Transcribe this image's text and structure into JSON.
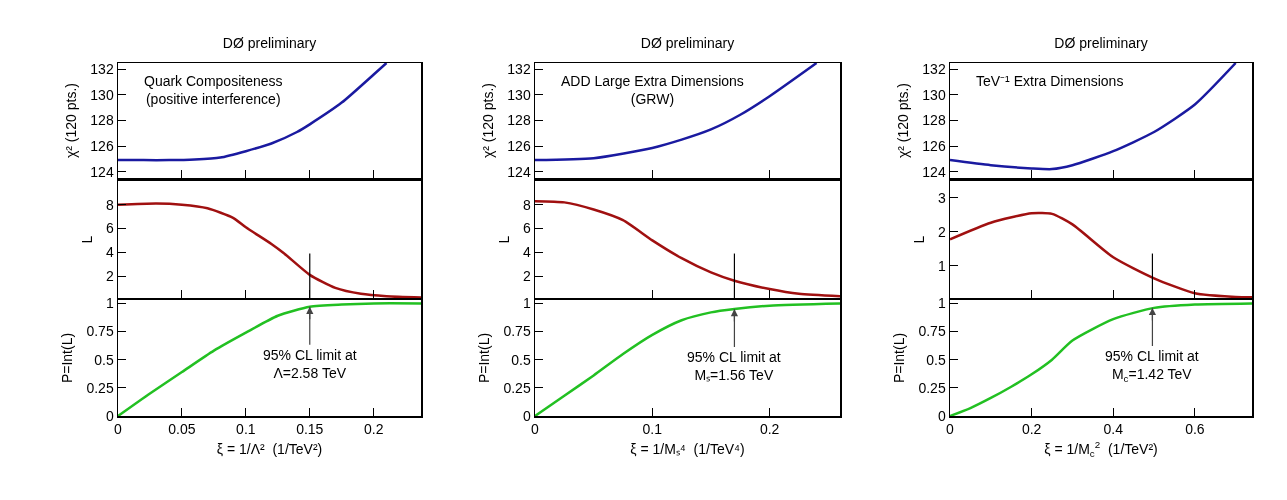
{
  "chart_data": [
    {
      "type": "line",
      "title": "DØ preliminary",
      "ylabel": "χ² (120 pts.)",
      "annotations": [
        "Quark Compositeness\n(positive interference)"
      ],
      "color": "#1a1aa0",
      "x": [
        0,
        0.02,
        0.04,
        0.06,
        0.08,
        0.1,
        0.12,
        0.14,
        0.15,
        0.175,
        0.2,
        0.21
      ],
      "values": [
        124.9,
        124.9,
        124.9,
        124.95,
        125.1,
        125.6,
        126.2,
        127.1,
        127.7,
        129.4,
        131.6,
        132.5
      ],
      "xlim": [
        0,
        0.237
      ],
      "xticks": [
        0,
        0.05,
        0.1,
        0.15,
        0.2
      ],
      "ylim": [
        123.5,
        132.5
      ],
      "yticks": [
        124,
        126,
        128,
        130,
        132
      ],
      "tick_labels": "y"
    },
    {
      "type": "line",
      "title": "DØ preliminary",
      "ylabel": "χ² (120 pts.)",
      "annotations": [
        "ADD Large Extra Dimensions\n(GRW)"
      ],
      "color": "#1a1aa0",
      "x": [
        0,
        0.05,
        0.1,
        0.125,
        0.15,
        0.175,
        0.2,
        0.24
      ],
      "values": [
        124.9,
        125.05,
        125.85,
        126.5,
        127.3,
        128.45,
        129.9,
        132.5
      ],
      "xlim": [
        0,
        0.26
      ],
      "xticks": [
        0,
        0.1,
        0.2
      ],
      "ylim": [
        123.5,
        132.5
      ],
      "yticks": [
        124,
        126,
        128,
        130,
        132
      ],
      "tick_labels": "y"
    },
    {
      "type": "line",
      "title": "DØ preliminary",
      "ylabel": "χ² (120 pts.)",
      "annotations": [
        "TeV⁻¹ Extra Dimensions"
      ],
      "color": "#1a1aa0",
      "x": [
        0,
        0.1,
        0.2,
        0.25,
        0.3,
        0.4,
        0.5,
        0.6,
        0.7
      ],
      "values": [
        124.9,
        124.5,
        124.25,
        124.2,
        124.5,
        125.6,
        127.1,
        129.25,
        132.5
      ],
      "xlim": [
        0,
        0.74
      ],
      "xticks": [
        0,
        0.2,
        0.4,
        0.6
      ],
      "ylim": [
        123.5,
        132.5
      ],
      "yticks": [
        124,
        126,
        128,
        130,
        132
      ],
      "tick_labels": "y"
    },
    {
      "type": "line",
      "ylabel": "L",
      "color": "#a01010",
      "x": [
        0,
        0.03,
        0.05,
        0.07,
        0.09,
        0.1,
        0.12,
        0.13,
        0.15,
        0.17,
        0.19,
        0.21,
        0.237
      ],
      "values": [
        8.0,
        8.1,
        8.0,
        7.7,
        6.9,
        6.1,
        4.7,
        3.9,
        2.1,
        1.0,
        0.5,
        0.3,
        0.2
      ],
      "xlim": [
        0,
        0.237
      ],
      "xticks": [
        0,
        0.05,
        0.1,
        0.15,
        0.2
      ],
      "ylim": [
        0.15,
        10
      ],
      "yticks": [
        2,
        4,
        6,
        8
      ],
      "tick_labels": "y",
      "ref_lines": [
        {
          "axis": "x",
          "value": 0.15,
          "color": "#000000"
        }
      ]
    },
    {
      "type": "line",
      "ylabel": "L",
      "color": "#a01010",
      "x": [
        0,
        0.025,
        0.05,
        0.075,
        0.1,
        0.125,
        0.15,
        0.17,
        0.2,
        0.225,
        0.26
      ],
      "values": [
        8.3,
        8.2,
        7.6,
        6.7,
        5.0,
        3.5,
        2.3,
        1.6,
        0.9,
        0.5,
        0.3
      ],
      "xlim": [
        0,
        0.26
      ],
      "xticks": [
        0,
        0.1,
        0.2
      ],
      "ylim": [
        0.15,
        10
      ],
      "yticks": [
        2,
        4,
        6,
        8
      ],
      "tick_labels": "y",
      "ref_lines": [
        {
          "axis": "x",
          "value": 0.17,
          "color": "#000000"
        }
      ]
    },
    {
      "type": "line",
      "ylabel": "L",
      "color": "#a01010",
      "x": [
        0,
        0.1,
        0.2,
        0.25,
        0.3,
        0.4,
        0.5,
        0.6,
        0.7,
        0.74
      ],
      "values": [
        1.78,
        2.27,
        2.55,
        2.53,
        2.22,
        1.25,
        0.63,
        0.19,
        0.08,
        0.07
      ],
      "xlim": [
        0,
        0.74
      ],
      "xticks": [
        0,
        0.2,
        0.4,
        0.6
      ],
      "ylim": [
        0.05,
        3.5
      ],
      "yticks": [
        1,
        2,
        3
      ],
      "tick_labels": "y",
      "ref_lines": [
        {
          "axis": "x",
          "value": 0.496,
          "color": "#000000"
        }
      ]
    },
    {
      "type": "line",
      "ylabel": "P=Int(L)",
      "xlabel": "ξ = 1/Λ²  (1/TeV²)",
      "annotations": [
        {
          "text": "95% CL limit at\nΛ=2.58 TeV",
          "x": 0.15,
          "y": 0.97
        }
      ],
      "color": "#22c022",
      "x": [
        0,
        0.025,
        0.05,
        0.075,
        0.1,
        0.125,
        0.15,
        0.175,
        0.2,
        0.237
      ],
      "values": [
        0,
        0.2,
        0.39,
        0.58,
        0.74,
        0.89,
        0.97,
        0.99,
        1.0,
        1.0
      ],
      "xlim": [
        0,
        0.237
      ],
      "xticks": [
        0,
        0.05,
        0.1,
        0.15,
        0.2
      ],
      "ylim": [
        0,
        1.03
      ],
      "yticks": [
        0,
        0.25,
        0.5,
        0.75,
        1
      ]
    },
    {
      "type": "line",
      "ylabel": "P=Int(L)",
      "xlabel": "ξ = 1/Mₛ⁴  (1/TeV⁴)",
      "annotations": [
        {
          "text": "95% CL limit at\nMₛ=1.56 TeV",
          "x": 0.17,
          "y": 0.95
        }
      ],
      "color": "#22c022",
      "x": [
        0,
        0.025,
        0.05,
        0.075,
        0.1,
        0.125,
        0.15,
        0.17,
        0.2,
        0.26
      ],
      "values": [
        0,
        0.18,
        0.36,
        0.55,
        0.72,
        0.85,
        0.92,
        0.95,
        0.98,
        1.0
      ],
      "xlim": [
        0,
        0.26
      ],
      "xticks": [
        0,
        0.1,
        0.2
      ],
      "ylim": [
        0,
        1.03
      ],
      "yticks": [
        0,
        0.25,
        0.5,
        0.75,
        1
      ]
    },
    {
      "type": "line",
      "ylabel": "P=Int(L)",
      "xlabel": "ξ = 1/M$_{c}$$^{2}$  (1/TeV²)",
      "annotations": [
        {
          "text": "95% CL limit at\nM$_{c}$=1.42 TeV",
          "x": 0.496,
          "y": 0.96
        }
      ],
      "color": "#22c022",
      "x": [
        0,
        0.05,
        0.1,
        0.15,
        0.2,
        0.25,
        0.3,
        0.4,
        0.5,
        0.6,
        0.74
      ],
      "values": [
        0,
        0.07,
        0.16,
        0.26,
        0.37,
        0.5,
        0.67,
        0.86,
        0.96,
        0.99,
        1.0
      ],
      "xlim": [
        0,
        0.74
      ],
      "xticks": [
        0,
        0.2,
        0.4,
        0.6
      ],
      "ylim": [
        0,
        1.03
      ],
      "yticks": [
        0,
        0.25,
        0.5,
        0.75,
        1
      ]
    }
  ]
}
